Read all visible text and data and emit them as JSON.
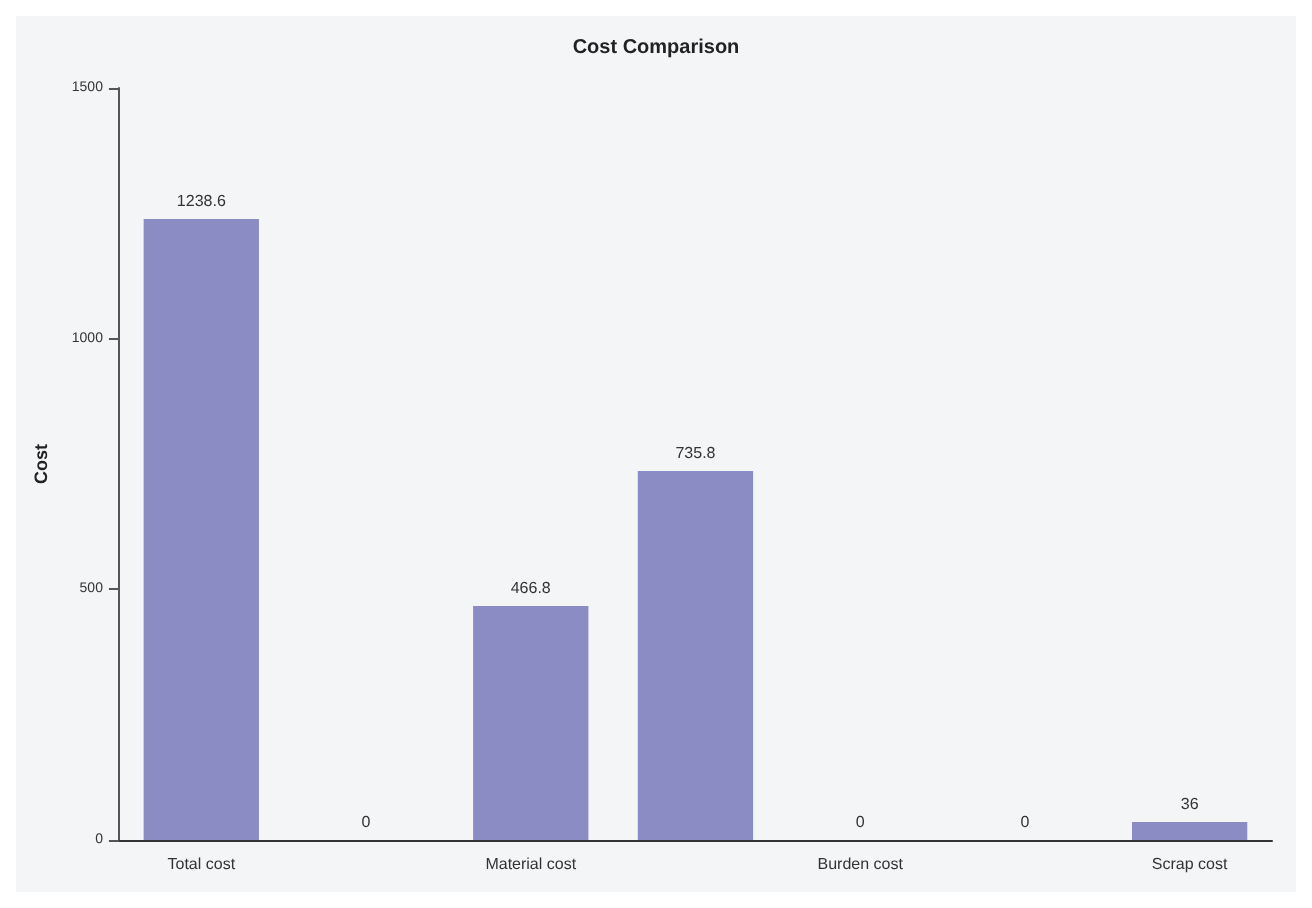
{
  "chart_data": {
    "type": "bar",
    "title": "Cost Comparison",
    "ylabel": "Cost",
    "categories": [
      "Total cost",
      null,
      "Material cost",
      null,
      "Burden cost",
      null,
      "Scrap cost"
    ],
    "values": [
      1238.6,
      0,
      466.8,
      735.8,
      0,
      0,
      36
    ],
    "color": "#8c8cc4",
    "ylim": [
      0,
      1500
    ],
    "yticks": [
      0,
      500,
      1000,
      1500
    ],
    "grid": false,
    "data_labels": true
  }
}
